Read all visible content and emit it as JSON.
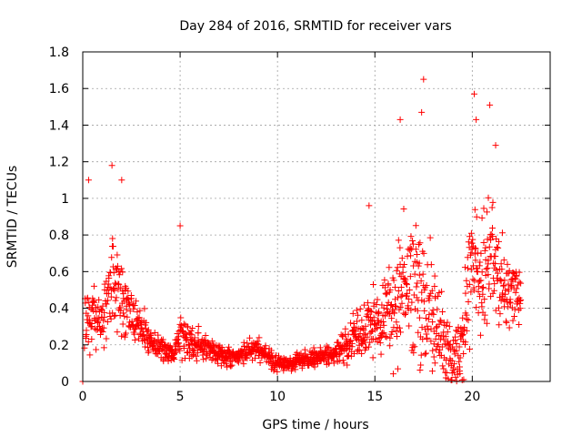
{
  "chart_data": {
    "type": "scatter",
    "title": "Day 284 of 2016, SRMTID for receiver vars",
    "xlabel": "GPS time / hours",
    "ylabel": "SRMTID / TECUs",
    "xlim": [
      0,
      24
    ],
    "ylim": [
      0,
      1.8
    ],
    "xticks": [
      0,
      5,
      10,
      15,
      20
    ],
    "xtick_labels": [
      "0",
      "5",
      "10",
      "15",
      "20"
    ],
    "yticks": [
      0,
      0.2,
      0.4,
      0.6,
      0.8,
      1.0,
      1.2,
      1.4,
      1.6,
      1.8
    ],
    "ytick_labels": [
      "0",
      "0.2",
      "0.4",
      "0.6",
      "0.8",
      "1",
      "1.2",
      "1.4",
      "1.6",
      "1.8"
    ],
    "grid": true,
    "marker": "+",
    "color": "#ff0000",
    "series": [
      {
        "name": "SRMTID",
        "trend": {
          "hours": [
            0.1,
            0.5,
            1.0,
            1.5,
            2.0,
            2.5,
            3.0,
            3.5,
            4.0,
            4.5,
            5.0,
            5.5,
            6.0,
            6.5,
            7.0,
            7.5,
            8.0,
            8.5,
            9.0,
            9.5,
            10.0,
            10.5,
            11.0,
            11.5,
            12.0,
            12.5,
            13.0,
            13.5,
            14.0,
            14.5,
            15.0,
            15.5,
            16.0,
            16.5,
            17.0,
            17.5,
            18.0,
            18.5,
            19.0,
            19.5,
            20.0,
            20.5,
            21.0,
            21.5,
            22.0,
            22.5
          ],
          "median": [
            0.3,
            0.35,
            0.32,
            0.55,
            0.45,
            0.38,
            0.3,
            0.22,
            0.18,
            0.16,
            0.25,
            0.22,
            0.2,
            0.18,
            0.15,
            0.13,
            0.14,
            0.17,
            0.18,
            0.14,
            0.1,
            0.09,
            0.11,
            0.12,
            0.13,
            0.14,
            0.16,
            0.2,
            0.25,
            0.3,
            0.33,
            0.35,
            0.45,
            0.55,
            0.5,
            0.45,
            0.35,
            0.25,
            0.1,
            0.2,
            0.6,
            0.55,
            0.65,
            0.55,
            0.5,
            0.45
          ],
          "spread": [
            0.15,
            0.2,
            0.15,
            0.3,
            0.25,
            0.15,
            0.12,
            0.08,
            0.07,
            0.07,
            0.12,
            0.1,
            0.08,
            0.07,
            0.06,
            0.05,
            0.05,
            0.06,
            0.06,
            0.05,
            0.05,
            0.04,
            0.05,
            0.05,
            0.05,
            0.06,
            0.07,
            0.1,
            0.15,
            0.18,
            0.2,
            0.22,
            0.35,
            0.35,
            0.4,
            0.45,
            0.3,
            0.25,
            0.12,
            0.25,
            0.35,
            0.35,
            0.35,
            0.25,
            0.2,
            0.15
          ]
        },
        "notable_points": [
          {
            "x": 0.0,
            "y": 0.0
          },
          {
            "x": 0.3,
            "y": 1.1
          },
          {
            "x": 1.5,
            "y": 1.18
          },
          {
            "x": 2.0,
            "y": 1.1
          },
          {
            "x": 5.0,
            "y": 0.85
          },
          {
            "x": 14.7,
            "y": 0.96
          },
          {
            "x": 16.3,
            "y": 1.43
          },
          {
            "x": 17.5,
            "y": 1.65
          },
          {
            "x": 17.4,
            "y": 1.47
          },
          {
            "x": 20.1,
            "y": 1.57
          },
          {
            "x": 20.2,
            "y": 1.43
          },
          {
            "x": 20.9,
            "y": 1.51
          },
          {
            "x": 21.2,
            "y": 1.29
          }
        ]
      }
    ]
  }
}
